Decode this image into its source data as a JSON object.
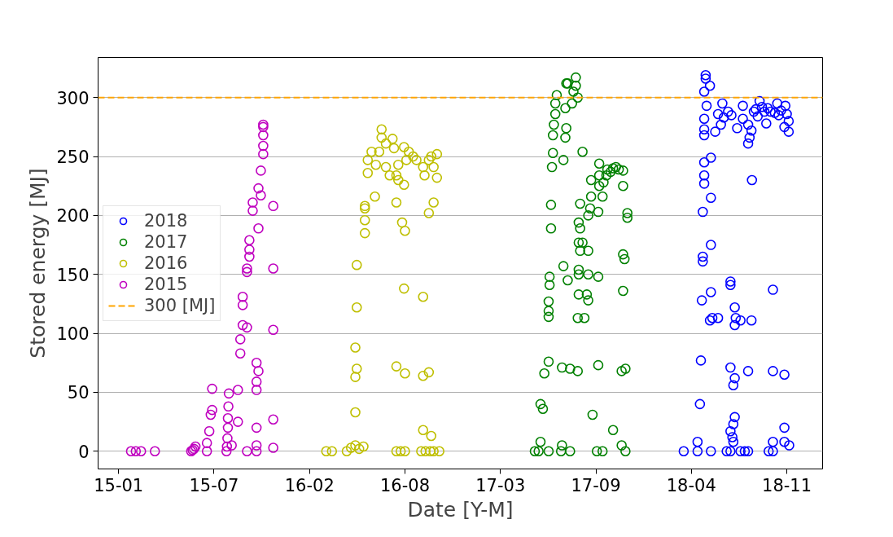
{
  "chart_data": {
    "type": "scatter",
    "xlabel": "Date [Y-M]",
    "ylabel": "Stored energy [MJ]",
    "marker": "circle",
    "grid": "y",
    "legend": "left",
    "xlim": [
      "2014-11-19",
      "2019-01-15"
    ],
    "ylim": [
      -15,
      334
    ],
    "xticks": [
      {
        "value": "2015-01-01",
        "label": "15-01"
      },
      {
        "value": "2015-07-20",
        "label": "15-07"
      },
      {
        "value": "2016-02-05",
        "label": "16-02"
      },
      {
        "value": "2016-08-23",
        "label": "16-08"
      },
      {
        "value": "2017-03-11",
        "label": "17-03"
      },
      {
        "value": "2017-09-27",
        "label": "17-09"
      },
      {
        "value": "2018-04-15",
        "label": "18-04"
      },
      {
        "value": "2018-11-01",
        "label": "18-11"
      }
    ],
    "yticks": [
      0,
      50,
      100,
      150,
      200,
      250,
      300
    ],
    "ref_lines": [
      {
        "axis": "y",
        "value": 300,
        "label": "300 [MJ]",
        "color": "#ffa500",
        "line_style": "dashed"
      }
    ],
    "series": [
      {
        "name": "2018",
        "color": "#0000ff",
        "x": [
          "2018-03-30",
          "2018-04-28",
          "2018-05-26",
          "2018-06-28",
          "2018-07-06",
          "2018-07-27",
          "2018-08-05",
          "2018-08-12",
          "2018-09-24",
          "2018-10-03",
          "2018-04-28",
          "2018-05-03",
          "2018-05-05",
          "2018-05-07",
          "2018-05-09",
          "2018-05-09",
          "2018-05-26",
          "2018-05-09",
          "2018-05-26",
          "2018-05-12",
          "2018-05-12",
          "2018-05-26",
          "2018-05-12",
          "2018-05-12",
          "2018-05-12",
          "2018-05-12",
          "2018-05-15",
          "2018-05-15",
          "2018-05-24",
          "2018-05-12",
          "2018-05-17",
          "2018-06-04",
          "2018-06-16",
          "2018-06-19",
          "2018-06-10",
          "2018-05-26",
          "2018-05-29",
          "2018-06-10",
          "2018-05-24",
          "2018-07-06",
          "2018-07-06",
          "2018-07-15",
          "2018-07-17",
          "2018-07-15",
          "2018-07-27",
          "2018-08-19",
          "2018-10-03",
          "2018-07-06",
          "2018-07-15",
          "2018-07-12",
          "2018-08-12",
          "2018-10-03",
          "2018-10-27",
          "2018-07-15",
          "2018-07-12",
          "2018-07-06",
          "2018-07-10",
          "2018-07-12",
          "2018-10-27",
          "2018-10-03",
          "2018-10-27",
          "2018-11-06",
          "2018-07-08",
          "2018-07-20",
          "2018-08-01",
          "2018-08-01",
          "2018-08-12",
          "2018-08-12",
          "2018-08-15",
          "2018-08-19",
          "2018-08-24",
          "2018-09-05",
          "2018-09-10",
          "2018-09-15",
          "2018-09-19",
          "2018-09-28",
          "2018-10-12",
          "2018-10-15",
          "2018-10-27",
          "2018-10-29",
          "2018-11-01",
          "2018-11-05",
          "2018-11-05",
          "2018-08-20",
          "2018-06-22",
          "2018-07-01",
          "2018-08-28",
          "2018-09-01",
          "2018-09-22",
          "2018-10-07",
          "2018-10-20"
        ],
        "values": [
          0,
          0,
          0,
          0,
          0,
          0,
          0,
          0,
          0,
          0,
          8,
          40,
          77,
          128,
          161,
          165,
          175,
          203,
          215,
          227,
          234,
          249,
          245,
          268,
          273,
          282,
          319,
          316,
          310,
          305,
          293,
          271,
          277,
          295,
          286,
          135,
          113,
          113,
          111,
          144,
          141,
          122,
          113,
          107,
          111,
          111,
          137,
          71,
          62,
          56,
          68,
          68,
          65,
          29,
          23,
          17,
          12,
          8,
          20,
          8,
          8,
          5,
          285,
          274,
          293,
          282,
          277,
          261,
          266,
          272,
          288,
          297,
          292,
          288,
          278,
          288,
          295,
          285,
          275,
          293,
          286,
          280,
          271,
          230,
          283,
          288,
          290,
          284,
          291,
          287,
          289
        ]
      },
      {
        "name": "2017",
        "color": "#008000",
        "x": [
          "2017-05-22",
          "2017-05-30",
          "2017-06-20",
          "2017-07-16",
          "2017-08-04",
          "2017-09-29",
          "2017-10-11",
          "2017-11-28",
          "2017-06-03",
          "2017-06-03",
          "2017-06-08",
          "2017-06-11",
          "2017-06-20",
          "2017-07-18",
          "2017-07-18",
          "2017-08-04",
          "2017-08-20",
          "2017-09-20",
          "2017-10-02",
          "2017-11-02",
          "2017-11-20",
          "2017-11-28",
          "2017-11-20",
          "2017-06-20",
          "2017-06-20",
          "2017-06-20",
          "2017-06-22",
          "2017-06-22",
          "2017-06-25",
          "2017-06-25",
          "2017-06-27",
          "2017-06-29",
          "2017-06-29",
          "2017-07-01",
          "2017-07-04",
          "2017-07-04",
          "2017-07-07",
          "2017-07-21",
          "2017-07-25",
          "2017-07-25",
          "2017-07-27",
          "2017-07-27",
          "2017-07-30",
          "2017-07-30",
          "2017-07-21",
          "2017-08-08",
          "2017-08-11",
          "2017-08-16",
          "2017-08-16",
          "2017-08-20",
          "2017-08-25",
          "2017-08-30",
          "2017-08-22",
          "2017-08-25",
          "2017-08-22",
          "2017-08-30",
          "2017-08-25",
          "2017-09-11",
          "2017-08-22",
          "2017-08-22",
          "2017-09-11",
          "2017-10-02",
          "2017-08-22",
          "2017-09-08",
          "2017-09-11",
          "2017-08-20",
          "2017-09-03",
          "2017-09-11",
          "2017-09-15",
          "2017-09-17",
          "2017-09-17",
          "2017-10-02",
          "2017-10-04",
          "2017-10-04",
          "2017-10-04",
          "2017-10-11",
          "2017-10-13",
          "2017-10-19",
          "2017-10-21",
          "2017-10-28",
          "2017-11-02",
          "2017-11-08",
          "2017-11-14",
          "2017-11-23",
          "2017-11-23",
          "2017-12-02",
          "2017-12-02",
          "2017-11-23",
          "2017-11-26",
          "2017-11-23"
        ],
        "values": [
          0,
          0,
          0,
          0,
          0,
          0,
          0,
          0,
          8,
          40,
          36,
          66,
          76,
          5,
          71,
          70,
          68,
          31,
          73,
          18,
          68,
          70,
          5,
          114,
          119,
          127,
          141,
          148,
          189,
          209,
          241,
          253,
          268,
          277,
          286,
          295,
          302,
          247,
          266,
          291,
          274,
          312,
          312,
          145,
          157,
          295,
          305,
          317,
          310,
          300,
          210,
          254,
          194,
          189,
          177,
          177,
          170,
          170,
          154,
          150,
          150,
          148,
          133,
          133,
          128,
          113,
          113,
          200,
          206,
          216,
          230,
          203,
          225,
          234,
          244,
          216,
          228,
          234,
          239,
          237,
          240,
          241,
          239,
          238,
          225,
          202,
          198,
          167,
          163,
          136
        ]
      },
      {
        "name": "2016",
        "color": "#bfbf00",
        "x": [
          "2016-03-11",
          "2016-03-23",
          "2016-04-23",
          "2016-05-02",
          "2016-05-11",
          "2016-05-19",
          "2016-05-28",
          "2016-05-11",
          "2016-05-11",
          "2016-05-14",
          "2016-05-11",
          "2016-05-14",
          "2016-05-14",
          "2016-05-31",
          "2016-05-31",
          "2016-05-31",
          "2016-05-31",
          "2016-06-06",
          "2016-06-06",
          "2016-06-14",
          "2016-06-21",
          "2016-06-23",
          "2016-06-30",
          "2016-07-05",
          "2016-07-05",
          "2016-07-14",
          "2016-07-14",
          "2016-07-22",
          "2016-07-28",
          "2016-07-31",
          "2016-08-05",
          "2016-08-09",
          "2016-08-09",
          "2016-08-21",
          "2016-08-21",
          "2016-08-26",
          "2016-08-31",
          "2016-09-09",
          "2016-09-16",
          "2016-09-30",
          "2016-10-03",
          "2016-10-12",
          "2016-10-17",
          "2016-10-22",
          "2016-10-29",
          "2016-10-29",
          "2016-08-05",
          "2016-08-17",
          "2016-08-23",
          "2016-10-12",
          "2016-10-22",
          "2016-08-21",
          "2016-09-30",
          "2016-08-23",
          "2016-08-05",
          "2016-09-30",
          "2016-10-12",
          "2016-08-05",
          "2016-08-14",
          "2016-08-23",
          "2016-09-26",
          "2016-10-05",
          "2016-10-15",
          "2016-10-22",
          "2016-11-03",
          "2016-09-30",
          "2016-10-17"
        ],
        "values": [
          0,
          0,
          0,
          3,
          5,
          2,
          4,
          33,
          63,
          70,
          88,
          122,
          158,
          185,
          196,
          206,
          208,
          236,
          247,
          254,
          216,
          243,
          254,
          273,
          266,
          261,
          241,
          234,
          265,
          257,
          234,
          243,
          230,
          226,
          258,
          247,
          254,
          250,
          247,
          241,
          234,
          247,
          250,
          241,
          252,
          232,
          211,
          194,
          187,
          202,
          211,
          138,
          131,
          66,
          72,
          64,
          67,
          0,
          0,
          0,
          0,
          0,
          0,
          0,
          0,
          18,
          13
        ]
      },
      {
        "name": "2015",
        "color": "#bf00bf",
        "x": [
          "2015-01-27",
          "2015-02-06",
          "2015-02-17",
          "2015-03-18",
          "2015-06-02",
          "2015-06-05",
          "2015-06-08",
          "2015-06-11",
          "2015-07-05",
          "2015-07-05",
          "2015-07-10",
          "2015-07-13",
          "2015-07-16",
          "2015-07-16",
          "2015-08-15",
          "2015-08-16",
          "2015-08-17",
          "2015-08-18",
          "2015-08-18",
          "2015-08-19",
          "2015-08-20",
          "2015-08-26",
          "2015-09-08",
          "2015-09-08",
          "2015-09-13",
          "2015-09-13",
          "2015-09-18",
          "2015-09-18",
          "2015-09-18",
          "2015-09-27",
          "2015-09-27",
          "2015-09-27",
          "2015-09-27",
          "2015-10-02",
          "2015-10-02",
          "2015-10-02",
          "2015-10-09",
          "2015-10-09",
          "2015-10-17",
          "2015-10-17",
          "2015-10-17",
          "2015-10-17",
          "2015-10-17",
          "2015-10-17",
          "2015-10-21",
          "2015-10-21",
          "2015-10-21",
          "2015-10-26",
          "2015-10-26",
          "2015-10-31",
          "2015-10-31",
          "2015-10-31",
          "2015-10-31",
          "2015-10-31",
          "2015-11-21",
          "2015-11-21",
          "2015-11-21",
          "2015-11-21",
          "2015-11-21"
        ],
        "values": [
          0,
          0,
          0,
          0,
          0,
          1,
          2,
          4,
          0,
          7,
          17,
          31,
          35,
          53,
          0,
          4,
          11,
          20,
          28,
          38,
          49,
          5,
          25,
          52,
          83,
          95,
          107,
          124,
          131,
          152,
          155,
          105,
          0,
          165,
          171,
          179,
          204,
          211,
          52,
          59,
          75,
          20,
          5,
          0,
          189,
          223,
          68,
          217,
          238,
          252,
          259,
          268,
          275,
          277,
          208,
          155,
          103,
          27,
          3
        ]
      }
    ]
  }
}
